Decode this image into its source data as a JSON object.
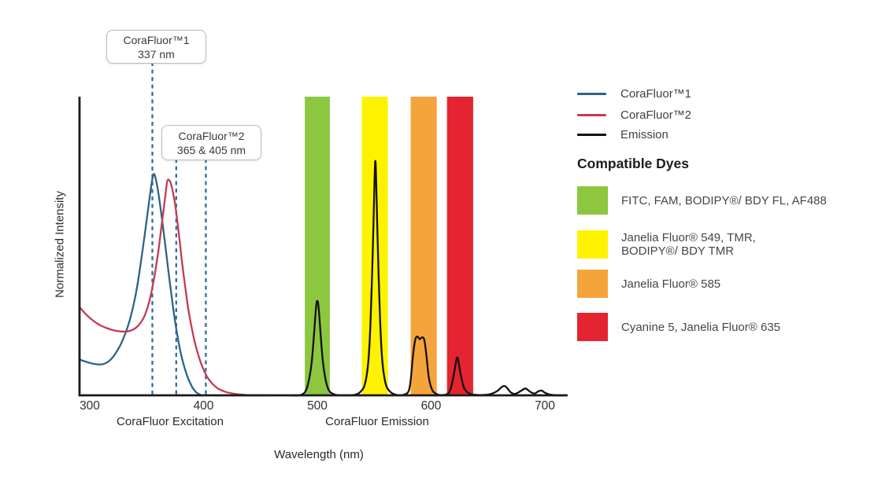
{
  "figure": {
    "y_axis_label": "Normalized Intensity",
    "x_axis_title": "Wavelength (nm)",
    "region_labels": {
      "excitation": "CoraFluor Excitation",
      "emission": "CoraFluor Emission"
    }
  },
  "legend": {
    "series": [
      {
        "label": "CoraFluor™1",
        "color": "#2D6389"
      },
      {
        "label": "CoraFluor™2",
        "color": "#C53A52"
      },
      {
        "label": "Emission",
        "color": "#121212"
      }
    ],
    "dyes_heading": "Compatible Dyes",
    "dyes": [
      {
        "name": "green",
        "label": "FITC, FAM, BODIPY®/ BDY FL, AF488",
        "color": "#8DC63F"
      },
      {
        "name": "yellow",
        "label": "Janelia Fluor® 549, TMR,\nBODIPY®/ BDY TMR",
        "color": "#FFF200"
      },
      {
        "name": "orange",
        "label": "Janelia Fluor® 585",
        "color": "#F5A43C"
      },
      {
        "name": "red",
        "label": "Cyanine 5, Janelia Fluor® 635",
        "color": "#E42430"
      }
    ]
  },
  "chart_data": {
    "type": "line",
    "title": "",
    "xlabel": "Wavelength (nm)",
    "ylabel": "Normalized Intensity",
    "x_ticks": [
      300,
      400,
      500,
      600,
      700
    ],
    "x_range_nm": [
      291,
      720
    ],
    "ylim": [
      0,
      1
    ],
    "grid": false,
    "legend_position": "right",
    "annotations": [
      {
        "title": "CoraFluor™1",
        "subtitle": "337 nm",
        "lines_nm": [
          355
        ]
      },
      {
        "title": "CoraFluor™2",
        "subtitle": "365 & 405 nm",
        "lines_nm": [
          376,
          402
        ]
      }
    ],
    "annotation_line_color": "#2E6E9E",
    "filter_bands": [
      {
        "name": "green",
        "nm": [
          489,
          511
        ],
        "color": "#8DC63F"
      },
      {
        "name": "yellow",
        "nm": [
          539,
          562
        ],
        "color": "#FFF200"
      },
      {
        "name": "orange",
        "nm": [
          582,
          605
        ],
        "color": "#F5A43C"
      },
      {
        "name": "red",
        "nm": [
          614,
          637
        ],
        "color": "#E42430"
      }
    ],
    "series": [
      {
        "name": "CoraFluor™1 excitation",
        "color": "#2D6389",
        "points": [
          [
            291,
            0.12
          ],
          [
            297,
            0.112
          ],
          [
            304,
            0.105
          ],
          [
            311,
            0.104
          ],
          [
            317,
            0.115
          ],
          [
            323,
            0.142
          ],
          [
            329,
            0.185
          ],
          [
            335,
            0.25
          ],
          [
            341,
            0.35
          ],
          [
            346,
            0.475
          ],
          [
            351,
            0.615
          ],
          [
            354,
            0.7
          ],
          [
            356,
            0.74
          ],
          [
            358,
            0.725
          ],
          [
            361,
            0.66
          ],
          [
            365,
            0.545
          ],
          [
            369,
            0.42
          ],
          [
            373,
            0.3
          ],
          [
            377,
            0.2
          ],
          [
            381,
            0.125
          ],
          [
            385,
            0.072
          ],
          [
            389,
            0.035
          ],
          [
            393,
            0.012
          ],
          [
            397,
            0.002
          ],
          [
            399,
            0
          ]
        ]
      },
      {
        "name": "CoraFluor™2 excitation",
        "color": "#C53A52",
        "points": [
          [
            291,
            0.295
          ],
          [
            297,
            0.27
          ],
          [
            303,
            0.25
          ],
          [
            309,
            0.235
          ],
          [
            315,
            0.225
          ],
          [
            321,
            0.218
          ],
          [
            327,
            0.214
          ],
          [
            333,
            0.214
          ],
          [
            338,
            0.22
          ],
          [
            343,
            0.235
          ],
          [
            348,
            0.265
          ],
          [
            352,
            0.31
          ],
          [
            356,
            0.38
          ],
          [
            360,
            0.475
          ],
          [
            363,
            0.565
          ],
          [
            366,
            0.655
          ],
          [
            368,
            0.715
          ],
          [
            370,
            0.72
          ],
          [
            372,
            0.7
          ],
          [
            375,
            0.64
          ],
          [
            378,
            0.55
          ],
          [
            381,
            0.45
          ],
          [
            384,
            0.36
          ],
          [
            387,
            0.28
          ],
          [
            391,
            0.2
          ],
          [
            395,
            0.14
          ],
          [
            399,
            0.095
          ],
          [
            403,
            0.063
          ],
          [
            408,
            0.038
          ],
          [
            413,
            0.022
          ],
          [
            419,
            0.012
          ],
          [
            426,
            0.006
          ],
          [
            434,
            0.002
          ],
          [
            443,
            0
          ],
          [
            455,
            0
          ]
        ]
      },
      {
        "name": "Emission",
        "color": "#121212",
        "points": [
          [
            476,
            0
          ],
          [
            484,
            0
          ],
          [
            489,
            0.01
          ],
          [
            492,
            0.04
          ],
          [
            495,
            0.11
          ],
          [
            497,
            0.2
          ],
          [
            499,
            0.3
          ],
          [
            500,
            0.315
          ],
          [
            501,
            0.3
          ],
          [
            503,
            0.2
          ],
          [
            505,
            0.11
          ],
          [
            508,
            0.04
          ],
          [
            511,
            0.012
          ],
          [
            516,
            0.002
          ],
          [
            524,
            0
          ],
          [
            533,
            0.002
          ],
          [
            538,
            0.012
          ],
          [
            542,
            0.04
          ],
          [
            545,
            0.12
          ],
          [
            547,
            0.27
          ],
          [
            549,
            0.52
          ],
          [
            550,
            0.68
          ],
          [
            551,
            0.785
          ],
          [
            552,
            0.68
          ],
          [
            553,
            0.52
          ],
          [
            555,
            0.27
          ],
          [
            557,
            0.12
          ],
          [
            560,
            0.04
          ],
          [
            564,
            0.012
          ],
          [
            569,
            0.002
          ],
          [
            575,
            0.001
          ],
          [
            580,
            0.012
          ],
          [
            582,
            0.05
          ],
          [
            584,
            0.13
          ],
          [
            586,
            0.185
          ],
          [
            588,
            0.197
          ],
          [
            590,
            0.188
          ],
          [
            592,
            0.194
          ],
          [
            594,
            0.186
          ],
          [
            596,
            0.13
          ],
          [
            598,
            0.06
          ],
          [
            601,
            0.018
          ],
          [
            605,
            0.004
          ],
          [
            609,
            0.001
          ],
          [
            614,
            0.004
          ],
          [
            617,
            0.02
          ],
          [
            620,
            0.07
          ],
          [
            622,
            0.115
          ],
          [
            623,
            0.127
          ],
          [
            624,
            0.115
          ],
          [
            626,
            0.07
          ],
          [
            629,
            0.025
          ],
          [
            633,
            0.007
          ],
          [
            638,
            0.002
          ],
          [
            645,
            0.001
          ],
          [
            652,
            0.004
          ],
          [
            658,
            0.014
          ],
          [
            663,
            0.03
          ],
          [
            666,
            0.028
          ],
          [
            670,
            0.01
          ],
          [
            674,
            0.005
          ],
          [
            679,
            0.015
          ],
          [
            683,
            0.023
          ],
          [
            687,
            0.012
          ],
          [
            691,
            0.006
          ],
          [
            694,
            0.013
          ],
          [
            697,
            0.016
          ],
          [
            700,
            0.009
          ],
          [
            704,
            0.003
          ],
          [
            710,
            0
          ],
          [
            719,
            0
          ]
        ]
      }
    ]
  }
}
